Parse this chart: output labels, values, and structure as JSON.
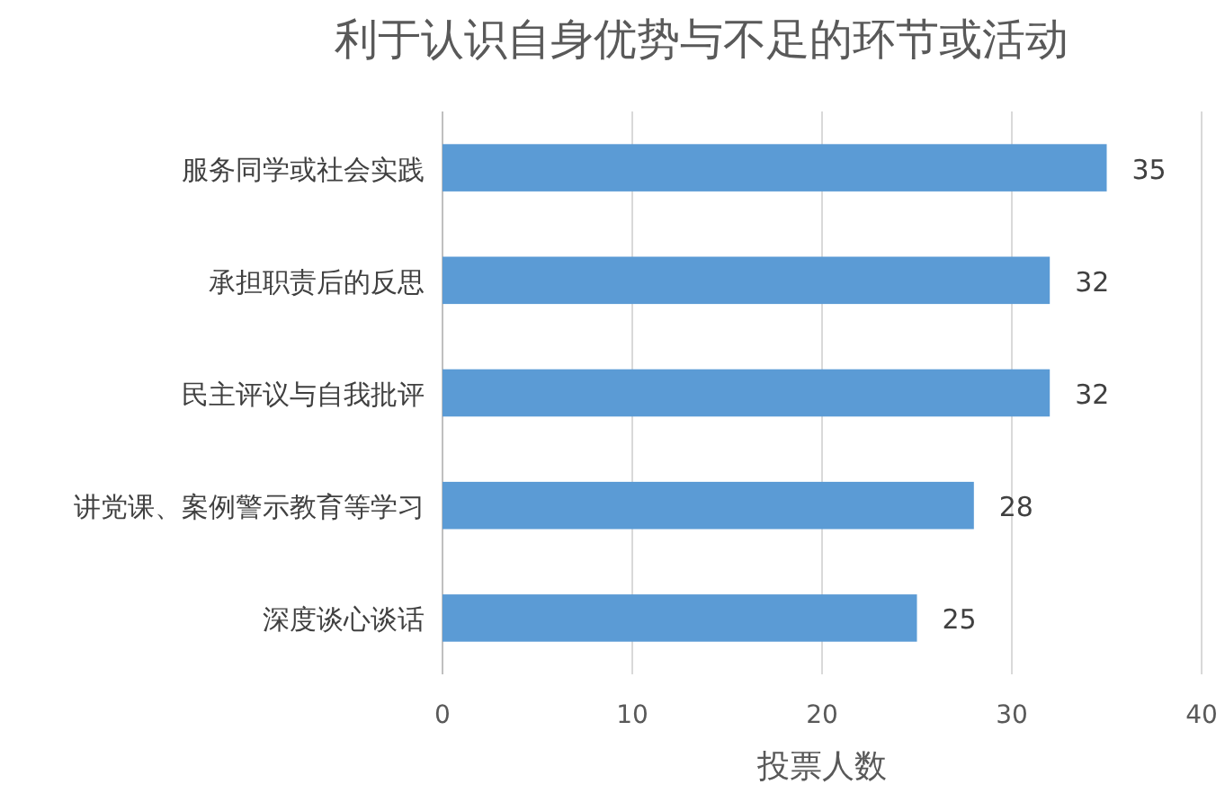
{
  "chart_data": {
    "type": "bar",
    "orientation": "horizontal",
    "title": "利于认识自身优势与不足的环节或活动",
    "xlabel": "投票人数",
    "categories": [
      "服务同学或社会实践",
      "承担职责后的反思",
      "民主评议与自我批评",
      "讲党课、案例警示教育等学习",
      "深度谈心谈话"
    ],
    "values": [
      35,
      32,
      32,
      28,
      25
    ],
    "color": "#5b9bd5",
    "data_labels": true,
    "xlim": [
      0,
      40
    ],
    "xticks": [
      0,
      10,
      20,
      30,
      40
    ],
    "grid": "x"
  }
}
